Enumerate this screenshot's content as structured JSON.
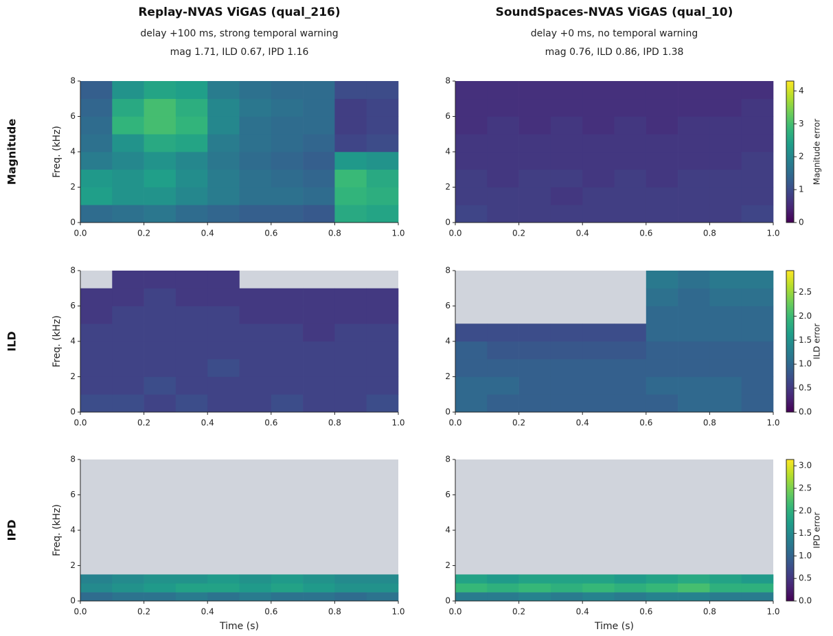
{
  "chart_data": [
    {
      "type": "heatmap",
      "title": "Replay-NVAS ViGAS (qual_216)",
      "subtitle": [
        "delay +100 ms, strong temporal warning",
        "mag 1.71, ILD 0.67, IPD 1.16"
      ],
      "row_label": "Magnitude",
      "y_label": "Freq. (kHz)",
      "colormap": "viridis",
      "mask_color": "#d0d4dc",
      "clim": [
        0,
        4.3
      ],
      "xlim": [
        0,
        1
      ],
      "ylim": [
        0,
        8
      ],
      "xticks": [
        {
          "value": 0,
          "label": "0.0"
        },
        {
          "value": 0.2,
          "label": "0.2"
        },
        {
          "value": 0.4,
          "label": "0.4"
        },
        {
          "value": 0.6,
          "label": "0.6"
        },
        {
          "value": 0.8,
          "label": "0.8"
        },
        {
          "value": 1,
          "label": "1.0"
        }
      ],
      "yticks": [
        0,
        2,
        4,
        6,
        8
      ],
      "x_bins": [
        0,
        0.1,
        0.2,
        0.3,
        0.4,
        0.5,
        0.6,
        0.7,
        0.8,
        0.9,
        1
      ],
      "y_bins": [
        0,
        1,
        2,
        3,
        4,
        5,
        6,
        7,
        8
      ],
      "values": [
        [
          1.5,
          1.6,
          1.7,
          1.5,
          1.4,
          1.3,
          1.3,
          1.2,
          2.6,
          2.5
        ],
        [
          2.4,
          2.2,
          2.2,
          2.0,
          1.8,
          1.6,
          1.6,
          1.5,
          2.8,
          2.7
        ],
        [
          2.3,
          2.2,
          2.4,
          2.1,
          1.8,
          1.6,
          1.5,
          1.4,
          2.9,
          2.6
        ],
        [
          1.8,
          2.0,
          2.2,
          2.0,
          1.7,
          1.5,
          1.4,
          1.3,
          2.3,
          2.2
        ],
        [
          1.6,
          2.2,
          2.6,
          2.5,
          1.8,
          1.6,
          1.5,
          1.4,
          0.9,
          1.0
        ],
        [
          1.5,
          2.8,
          3.0,
          2.8,
          2.0,
          1.6,
          1.5,
          1.5,
          0.8,
          0.9
        ],
        [
          1.4,
          2.6,
          3.0,
          2.7,
          2.0,
          1.7,
          1.6,
          1.5,
          0.8,
          0.9
        ],
        [
          1.3,
          2.2,
          2.5,
          2.4,
          1.8,
          1.6,
          1.5,
          1.5,
          1.0,
          1.0
        ]
      ]
    },
    {
      "type": "heatmap",
      "title": "SoundSpaces-NVAS ViGAS (qual_10)",
      "subtitle": [
        "delay +0 ms, no temporal warning",
        "mag 0.76, ILD 0.86, IPD 1.38"
      ],
      "colormap": "viridis",
      "mask_color": "#d0d4dc",
      "clim": [
        0,
        4.3
      ],
      "xlim": [
        0,
        1
      ],
      "ylim": [
        0,
        8
      ],
      "xticks": [
        {
          "value": 0,
          "label": "0.0"
        },
        {
          "value": 0.2,
          "label": "0.2"
        },
        {
          "value": 0.4,
          "label": "0.4"
        },
        {
          "value": 0.6,
          "label": "0.6"
        },
        {
          "value": 0.8,
          "label": "0.8"
        },
        {
          "value": 1,
          "label": "1.0"
        }
      ],
      "yticks": [
        0,
        2,
        4,
        6,
        8
      ],
      "x_bins": [
        0,
        0.1,
        0.2,
        0.3,
        0.4,
        0.5,
        0.6,
        0.7,
        0.8,
        0.9,
        1
      ],
      "y_bins": [
        0,
        1,
        2,
        3,
        4,
        5,
        6,
        7,
        8
      ],
      "values": [
        [
          0.9,
          0.8,
          0.8,
          0.8,
          0.8,
          0.8,
          0.8,
          0.8,
          0.8,
          0.9
        ],
        [
          0.8,
          0.8,
          0.8,
          0.7,
          0.8,
          0.8,
          0.8,
          0.8,
          0.8,
          0.8
        ],
        [
          0.8,
          0.7,
          0.8,
          0.8,
          0.7,
          0.8,
          0.7,
          0.8,
          0.8,
          0.8
        ],
        [
          0.7,
          0.7,
          0.7,
          0.7,
          0.7,
          0.7,
          0.7,
          0.7,
          0.7,
          0.8
        ],
        [
          0.7,
          0.7,
          0.7,
          0.7,
          0.7,
          0.7,
          0.7,
          0.7,
          0.7,
          0.7
        ],
        [
          0.6,
          0.7,
          0.6,
          0.7,
          0.6,
          0.7,
          0.6,
          0.7,
          0.7,
          0.7
        ],
        [
          0.6,
          0.6,
          0.6,
          0.6,
          0.6,
          0.6,
          0.6,
          0.6,
          0.6,
          0.7
        ],
        [
          0.6,
          0.6,
          0.6,
          0.6,
          0.6,
          0.6,
          0.6,
          0.6,
          0.6,
          0.6
        ]
      ],
      "colorbar": {
        "label": "Magnitude error",
        "ticks": [
          0,
          1,
          2,
          3,
          4
        ]
      }
    },
    {
      "type": "heatmap",
      "row_label": "ILD",
      "y_label": "Freq. (kHz)",
      "colormap": "viridis",
      "mask_color": "#d0d4dc",
      "clim": [
        0,
        2.95
      ],
      "xlim": [
        0,
        1
      ],
      "ylim": [
        0,
        8
      ],
      "xticks": [
        {
          "value": 0,
          "label": "0.0"
        },
        {
          "value": 0.2,
          "label": "0.2"
        },
        {
          "value": 0.4,
          "label": "0.4"
        },
        {
          "value": 0.6,
          "label": "0.6"
        },
        {
          "value": 0.8,
          "label": "0.8"
        },
        {
          "value": 1,
          "label": "1.0"
        }
      ],
      "yticks": [
        0,
        2,
        4,
        6,
        8
      ],
      "x_bins": [
        0,
        0.1,
        0.2,
        0.3,
        0.4,
        0.5,
        0.6,
        0.7,
        0.8,
        0.9,
        1
      ],
      "y_bins": [
        0,
        1,
        2,
        3,
        4,
        5,
        6,
        7,
        8
      ],
      "values": [
        [
          0.7,
          0.7,
          0.6,
          0.7,
          0.6,
          0.6,
          0.7,
          0.6,
          0.6,
          0.7
        ],
        [
          0.6,
          0.6,
          0.7,
          0.6,
          0.6,
          0.6,
          0.6,
          0.6,
          0.6,
          0.6
        ],
        [
          0.6,
          0.6,
          0.6,
          0.6,
          0.7,
          0.6,
          0.6,
          0.6,
          0.6,
          0.6
        ],
        [
          0.6,
          0.6,
          0.6,
          0.6,
          0.6,
          0.6,
          0.6,
          0.6,
          0.6,
          0.6
        ],
        [
          0.6,
          0.6,
          0.6,
          0.6,
          0.6,
          0.6,
          0.6,
          0.5,
          0.6,
          0.6
        ],
        [
          0.5,
          0.6,
          0.6,
          0.6,
          0.6,
          0.5,
          0.5,
          0.5,
          0.5,
          0.5
        ],
        [
          0.5,
          0.5,
          0.6,
          0.5,
          0.5,
          0.5,
          0.5,
          0.5,
          0.5,
          0.5
        ],
        [
          null,
          0.5,
          0.5,
          0.5,
          0.5,
          null,
          null,
          null,
          null,
          null
        ]
      ]
    },
    {
      "type": "heatmap",
      "colormap": "viridis",
      "mask_color": "#d0d4dc",
      "clim": [
        0,
        2.95
      ],
      "xlim": [
        0,
        1
      ],
      "ylim": [
        0,
        8
      ],
      "xticks": [
        {
          "value": 0,
          "label": "0.0"
        },
        {
          "value": 0.2,
          "label": "0.2"
        },
        {
          "value": 0.4,
          "label": "0.4"
        },
        {
          "value": 0.6,
          "label": "0.6"
        },
        {
          "value": 0.8,
          "label": "0.8"
        },
        {
          "value": 1,
          "label": "1.0"
        }
      ],
      "yticks": [
        0,
        2,
        4,
        6,
        8
      ],
      "x_bins": [
        0,
        0.1,
        0.2,
        0.3,
        0.4,
        0.5,
        0.6,
        0.7,
        0.8,
        0.9,
        1
      ],
      "y_bins": [
        0,
        1,
        2,
        3,
        4,
        5,
        6,
        7,
        8
      ],
      "values": [
        [
          1.0,
          0.9,
          0.9,
          0.9,
          0.9,
          0.9,
          0.9,
          1.0,
          1.0,
          0.9
        ],
        [
          1.0,
          1.0,
          0.9,
          0.9,
          0.9,
          0.9,
          1.0,
          1.0,
          1.0,
          0.9
        ],
        [
          0.9,
          0.9,
          0.9,
          0.9,
          0.9,
          0.9,
          0.9,
          0.9,
          0.9,
          0.9
        ],
        [
          0.9,
          0.8,
          0.8,
          0.8,
          0.8,
          0.8,
          0.9,
          0.9,
          0.9,
          0.9
        ],
        [
          0.7,
          0.7,
          0.7,
          0.7,
          0.7,
          0.7,
          1.0,
          1.0,
          1.0,
          1.0
        ],
        [
          null,
          null,
          null,
          null,
          null,
          null,
          1.0,
          1.0,
          1.0,
          1.0
        ],
        [
          null,
          null,
          null,
          null,
          null,
          null,
          1.1,
          1.0,
          1.1,
          1.1
        ],
        [
          null,
          null,
          null,
          null,
          null,
          null,
          1.2,
          1.1,
          1.2,
          1.2
        ]
      ],
      "colorbar": {
        "label": "ILD error",
        "ticks": [
          {
            "value": 0,
            "label": "0.0"
          },
          {
            "value": 0.5,
            "label": "0.5"
          },
          {
            "value": 1,
            "label": "1.0"
          },
          {
            "value": 1.5,
            "label": "1.5"
          },
          {
            "value": 2,
            "label": "2.0"
          },
          {
            "value": 2.5,
            "label": "2.5"
          }
        ]
      }
    },
    {
      "type": "heatmap",
      "row_label": "IPD",
      "y_label": "Freq. (kHz)",
      "x_label": "Time (s)",
      "colormap": "viridis",
      "mask_color": "#d0d4dc",
      "clim": [
        0,
        3.14
      ],
      "xlim": [
        0,
        1
      ],
      "ylim": [
        0,
        8
      ],
      "xticks": [
        {
          "value": 0,
          "label": "0.0"
        },
        {
          "value": 0.2,
          "label": "0.2"
        },
        {
          "value": 0.4,
          "label": "0.4"
        },
        {
          "value": 0.6,
          "label": "0.6"
        },
        {
          "value": 0.8,
          "label": "0.8"
        },
        {
          "value": 1,
          "label": "1.0"
        }
      ],
      "yticks": [
        0,
        2,
        4,
        6,
        8
      ],
      "x_bins": [
        0,
        0.1,
        0.2,
        0.3,
        0.4,
        0.5,
        0.6,
        0.7,
        0.8,
        0.9,
        1
      ],
      "y_bins": [
        0,
        0.5,
        1,
        1.5
      ],
      "values": [
        [
          1.1,
          1.2,
          1.2,
          1.3,
          1.2,
          1.3,
          1.2,
          1.2,
          1.1,
          1.2
        ],
        [
          1.5,
          1.6,
          1.7,
          1.8,
          1.8,
          1.7,
          1.8,
          1.7,
          1.6,
          1.6
        ],
        [
          1.4,
          1.5,
          1.6,
          1.6,
          1.7,
          1.6,
          1.7,
          1.6,
          1.5,
          1.5
        ]
      ]
    },
    {
      "type": "heatmap",
      "x_label": "Time (s)",
      "colormap": "viridis",
      "mask_color": "#d0d4dc",
      "clim": [
        0,
        3.14
      ],
      "xlim": [
        0,
        1
      ],
      "ylim": [
        0,
        8
      ],
      "xticks": [
        {
          "value": 0,
          "label": "0.0"
        },
        {
          "value": 0.2,
          "label": "0.2"
        },
        {
          "value": 0.4,
          "label": "0.4"
        },
        {
          "value": 0.6,
          "label": "0.6"
        },
        {
          "value": 0.8,
          "label": "0.8"
        },
        {
          "value": 1,
          "label": "1.0"
        }
      ],
      "yticks": [
        0,
        2,
        4,
        6,
        8
      ],
      "x_bins": [
        0,
        0.1,
        0.2,
        0.3,
        0.4,
        0.5,
        0.6,
        0.7,
        0.8,
        0.9,
        1
      ],
      "y_bins": [
        0,
        0.5,
        1,
        1.5
      ],
      "values": [
        [
          1.3,
          1.3,
          1.4,
          1.3,
          1.4,
          1.3,
          1.4,
          1.4,
          1.3,
          1.3
        ],
        [
          2.1,
          2.0,
          2.1,
          2.0,
          2.1,
          2.0,
          2.1,
          2.2,
          2.0,
          2.0
        ],
        [
          1.8,
          1.7,
          1.8,
          1.8,
          1.8,
          1.7,
          1.8,
          1.9,
          1.8,
          1.7
        ]
      ],
      "colorbar": {
        "label": "IPD error",
        "ticks": [
          {
            "value": 0,
            "label": "0.0"
          },
          {
            "value": 0.5,
            "label": "0.5"
          },
          {
            "value": 1,
            "label": "1.0"
          },
          {
            "value": 1.5,
            "label": "1.5"
          },
          {
            "value": 2,
            "label": "2.0"
          },
          {
            "value": 2.5,
            "label": "2.5"
          },
          {
            "value": 3,
            "label": "3.0"
          }
        ]
      }
    }
  ]
}
